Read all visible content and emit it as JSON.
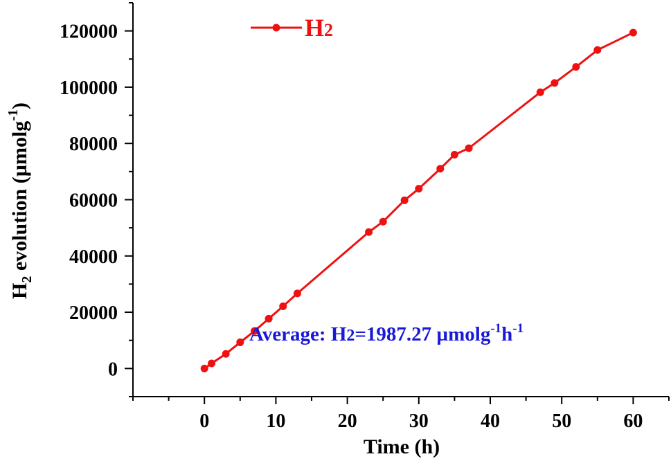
{
  "colors": {
    "series": "#ee1111",
    "annotation": "#1a1ad6",
    "axis": "#000000"
  },
  "chart_data": {
    "type": "line",
    "xlabel": "Time (h)",
    "ylabel": {
      "main": "H",
      "sub": "2",
      "rest": " evolution (µmolg",
      "sup": "-1",
      "end": ")"
    },
    "xlim": [
      -10,
      65
    ],
    "ylim": [
      -10000,
      130000
    ],
    "xticks": [
      0,
      10,
      20,
      30,
      40,
      50,
      60
    ],
    "yticks": [
      0,
      20000,
      40000,
      60000,
      80000,
      100000,
      120000
    ],
    "xtick_labels": [
      "0",
      "10",
      "20",
      "30",
      "40",
      "50",
      "60"
    ],
    "ytick_labels": [
      "0",
      "20000",
      "40000",
      "60000",
      "80000",
      "100000",
      "120000"
    ],
    "grid": false,
    "legend": {
      "position": "top-left",
      "main": "H",
      "sub": "2"
    },
    "annotation": {
      "prefix": "Average: H",
      "sub": "2",
      "middle": "=1987.27 µmolg",
      "sup1": "-1",
      "h": "h",
      "sup2": "-1"
    },
    "series": [
      {
        "x": [
          0,
          1,
          3,
          5,
          7,
          9,
          11,
          13,
          23,
          25,
          28,
          30,
          33,
          35,
          37,
          47,
          49,
          52,
          55,
          60
        ],
        "y": [
          0,
          1800,
          5200,
          9300,
          13300,
          17700,
          22100,
          26700,
          48500,
          52200,
          59800,
          63900,
          71000,
          76000,
          78300,
          98200,
          101500,
          107200,
          113200,
          119400
        ]
      }
    ]
  }
}
